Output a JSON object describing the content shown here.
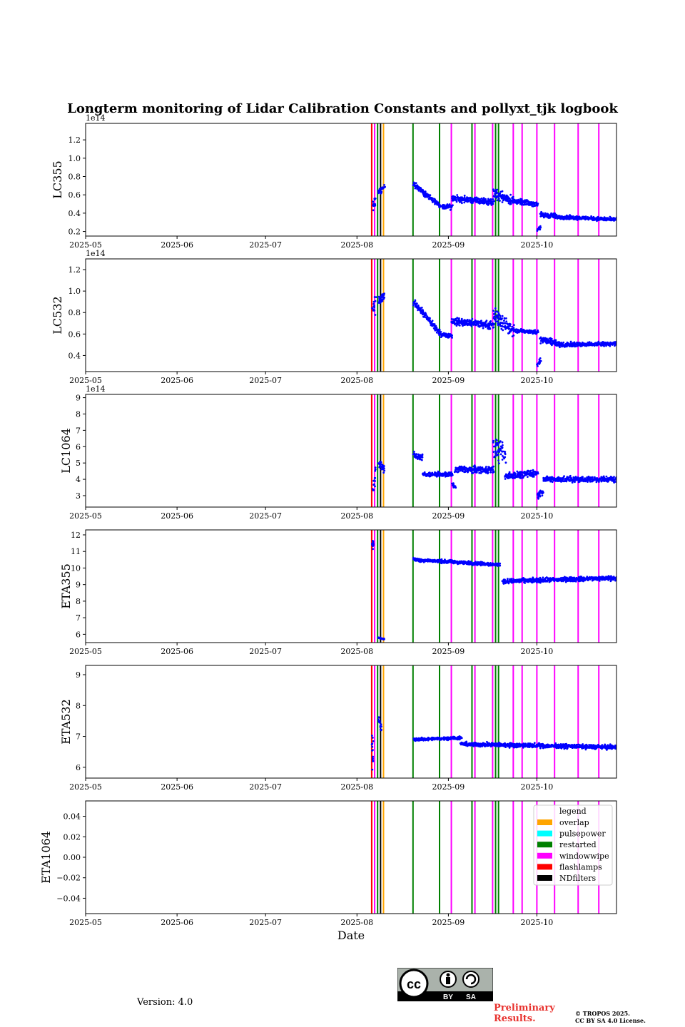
{
  "chart_data": {
    "type": "scatter",
    "title": "Longterm monitoring of Lidar Calibration Constants and pollyxt_tjk logbook",
    "xlabel": "Date",
    "x_range": [
      "2025-05-01",
      "2025-10-28"
    ],
    "x_ticks": [
      "2025-05",
      "2025-06",
      "2025-07",
      "2025-08",
      "2025-09",
      "2025-10"
    ],
    "series_color": "#0000ff",
    "events": [
      {
        "date": "2025-08-06",
        "type": "overlap"
      },
      {
        "date": "2025-08-06",
        "type": "flashlamps"
      },
      {
        "date": "2025-08-07",
        "type": "windowwipe"
      },
      {
        "date": "2025-08-08",
        "type": "restarted"
      },
      {
        "date": "2025-08-09",
        "type": "NDfilters"
      },
      {
        "date": "2025-08-10",
        "type": "overlap"
      },
      {
        "date": "2025-08-20",
        "type": "restarted"
      },
      {
        "date": "2025-08-29",
        "type": "restarted"
      },
      {
        "date": "2025-09-02",
        "type": "windowwipe"
      },
      {
        "date": "2025-09-09",
        "type": "restarted"
      },
      {
        "date": "2025-09-10",
        "type": "windowwipe"
      },
      {
        "date": "2025-09-16",
        "type": "windowwipe"
      },
      {
        "date": "2025-09-17",
        "type": "restarted"
      },
      {
        "date": "2025-09-18",
        "type": "restarted"
      },
      {
        "date": "2025-09-23",
        "type": "windowwipe"
      },
      {
        "date": "2025-09-26",
        "type": "windowwipe"
      },
      {
        "date": "2025-10-01",
        "type": "windowwipe"
      },
      {
        "date": "2025-10-07",
        "type": "windowwipe"
      },
      {
        "date": "2025-10-15",
        "type": "windowwipe"
      },
      {
        "date": "2025-10-22",
        "type": "windowwipe"
      }
    ],
    "event_colors": {
      "overlap": "#ffa500",
      "pulsepower": "#00ffff",
      "restarted": "#008000",
      "windowwipe": "#ff00ff",
      "flashlamps": "#ff0000",
      "NDfilters": "#000000"
    },
    "legend": {
      "title": "legend",
      "position": "top-right",
      "entries": [
        "overlap",
        "pulsepower",
        "restarted",
        "windowwipe",
        "flashlamps",
        "NDfilters"
      ]
    },
    "panels": [
      {
        "ylabel": "LC355",
        "offset_label": "1e14",
        "ylim": [
          0.15,
          1.38
        ],
        "yticks": [
          0.2,
          0.4,
          0.6,
          0.8,
          1.0,
          1.2
        ],
        "ytick_labels": [
          "0.2",
          "0.4",
          "0.6",
          "0.8",
          "1.0",
          "1.2"
        ],
        "segments": [
          {
            "start": "2025-08-06",
            "end": "2025-08-07",
            "from": 0.5,
            "to": 0.52,
            "noise": 0.1
          },
          {
            "start": "2025-08-08",
            "end": "2025-08-10",
            "from": 0.62,
            "to": 0.68,
            "noise": 0.05
          },
          {
            "start": "2025-08-20",
            "end": "2025-08-29",
            "from": 0.72,
            "to": 0.47,
            "noise": 0.04
          },
          {
            "start": "2025-08-29",
            "end": "2025-09-02",
            "from": 0.47,
            "to": 0.47,
            "noise": 0.04
          },
          {
            "start": "2025-09-02",
            "end": "2025-09-16",
            "from": 0.56,
            "to": 0.52,
            "noise": 0.05
          },
          {
            "start": "2025-09-16",
            "end": "2025-09-23",
            "from": 0.62,
            "to": 0.53,
            "noise": 0.08
          },
          {
            "start": "2025-09-23",
            "end": "2025-10-01",
            "from": 0.53,
            "to": 0.5,
            "noise": 0.04
          },
          {
            "start": "2025-10-01",
            "end": "2025-10-02",
            "from": 0.22,
            "to": 0.25,
            "noise": 0.03
          },
          {
            "start": "2025-10-02",
            "end": "2025-10-07",
            "from": 0.38,
            "to": 0.37,
            "noise": 0.04
          },
          {
            "start": "2025-10-07",
            "end": "2025-10-28",
            "from": 0.36,
            "to": 0.33,
            "noise": 0.03
          }
        ]
      },
      {
        "ylabel": "LC532",
        "offset_label": "1e14",
        "ylim": [
          0.25,
          1.3
        ],
        "yticks": [
          0.4,
          0.6,
          0.8,
          1.0,
          1.2
        ],
        "ytick_labels": [
          "0.4",
          "0.6",
          "0.8",
          "1.0",
          "1.2"
        ],
        "segments": [
          {
            "start": "2025-08-06",
            "end": "2025-08-07",
            "from": 0.8,
            "to": 0.9,
            "noise": 0.15
          },
          {
            "start": "2025-08-08",
            "end": "2025-08-10",
            "from": 0.9,
            "to": 0.95,
            "noise": 0.06
          },
          {
            "start": "2025-08-20",
            "end": "2025-08-29",
            "from": 0.9,
            "to": 0.6,
            "noise": 0.04
          },
          {
            "start": "2025-08-29",
            "end": "2025-09-02",
            "from": 0.6,
            "to": 0.58,
            "noise": 0.03
          },
          {
            "start": "2025-09-02",
            "end": "2025-09-16",
            "from": 0.72,
            "to": 0.68,
            "noise": 0.05
          },
          {
            "start": "2025-09-16",
            "end": "2025-09-23",
            "from": 0.78,
            "to": 0.62,
            "noise": 0.1
          },
          {
            "start": "2025-09-23",
            "end": "2025-10-01",
            "from": 0.63,
            "to": 0.62,
            "noise": 0.03
          },
          {
            "start": "2025-10-01",
            "end": "2025-10-02",
            "from": 0.32,
            "to": 0.36,
            "noise": 0.03
          },
          {
            "start": "2025-10-02",
            "end": "2025-10-07",
            "from": 0.55,
            "to": 0.52,
            "noise": 0.04
          },
          {
            "start": "2025-10-07",
            "end": "2025-10-28",
            "from": 0.5,
            "to": 0.51,
            "noise": 0.03
          }
        ]
      },
      {
        "ylabel": "LC1064",
        "offset_label": "1e14",
        "ylim": [
          2.3,
          9.2
        ],
        "yticks": [
          3,
          4,
          5,
          6,
          7,
          8,
          9
        ],
        "ytick_labels": [
          "3",
          "4",
          "5",
          "6",
          "7",
          "8",
          "9"
        ],
        "segments": [
          {
            "start": "2025-08-06",
            "end": "2025-08-07",
            "from": 3.5,
            "to": 4.5,
            "noise": 0.8
          },
          {
            "start": "2025-08-08",
            "end": "2025-08-10",
            "from": 5.0,
            "to": 4.6,
            "noise": 0.3
          },
          {
            "start": "2025-08-20",
            "end": "2025-08-23",
            "from": 5.5,
            "to": 5.3,
            "noise": 0.3
          },
          {
            "start": "2025-08-23",
            "end": "2025-09-02",
            "from": 4.3,
            "to": 4.3,
            "noise": 0.2
          },
          {
            "start": "2025-09-02",
            "end": "2025-09-03",
            "from": 3.7,
            "to": 3.5,
            "noise": 0.2
          },
          {
            "start": "2025-09-03",
            "end": "2025-09-16",
            "from": 4.6,
            "to": 4.6,
            "noise": 0.3
          },
          {
            "start": "2025-09-16",
            "end": "2025-09-20",
            "from": 6.0,
            "to": 5.5,
            "noise": 1.0
          },
          {
            "start": "2025-09-20",
            "end": "2025-10-01",
            "from": 4.2,
            "to": 4.4,
            "noise": 0.3
          },
          {
            "start": "2025-10-01",
            "end": "2025-10-03",
            "from": 3.0,
            "to": 3.3,
            "noise": 0.3
          },
          {
            "start": "2025-10-03",
            "end": "2025-10-28",
            "from": 4.0,
            "to": 4.0,
            "noise": 0.25
          }
        ]
      },
      {
        "ylabel": "ETA355",
        "offset_label": "",
        "ylim": [
          5.5,
          12.3
        ],
        "yticks": [
          6,
          7,
          8,
          9,
          10,
          11,
          12
        ],
        "ytick_labels": [
          "6",
          "7",
          "8",
          "9",
          "10",
          "11",
          "12"
        ],
        "segments": [
          {
            "start": "2025-08-06",
            "end": "2025-08-06",
            "from": 11.5,
            "to": 11.5,
            "noise": 0.4
          },
          {
            "start": "2025-08-08",
            "end": "2025-08-10",
            "from": 5.8,
            "to": 5.7,
            "noise": 0.05
          },
          {
            "start": "2025-08-20",
            "end": "2025-09-18",
            "from": 10.5,
            "to": 10.2,
            "noise": 0.15
          },
          {
            "start": "2025-09-19",
            "end": "2025-10-28",
            "from": 9.2,
            "to": 9.4,
            "noise": 0.2
          }
        ]
      },
      {
        "ylabel": "ETA532",
        "offset_label": "",
        "ylim": [
          5.65,
          9.3
        ],
        "yticks": [
          6,
          7,
          8,
          9
        ],
        "ytick_labels": [
          "6",
          "7",
          "8",
          "9"
        ],
        "segments": [
          {
            "start": "2025-08-06",
            "end": "2025-08-06",
            "from": 6.0,
            "to": 7.0,
            "noise": 0.6
          },
          {
            "start": "2025-08-08",
            "end": "2025-08-09",
            "from": 7.6,
            "to": 7.2,
            "noise": 0.1
          },
          {
            "start": "2025-08-20",
            "end": "2025-09-05",
            "from": 6.9,
            "to": 6.95,
            "noise": 0.07
          },
          {
            "start": "2025-09-05",
            "end": "2025-10-28",
            "from": 6.75,
            "to": 6.65,
            "noise": 0.1
          }
        ]
      },
      {
        "ylabel": "ETA1064",
        "offset_label": "",
        "ylim": [
          -0.055,
          0.055
        ],
        "yticks": [
          -0.04,
          -0.02,
          0.0,
          0.02,
          0.04
        ],
        "ytick_labels": [
          "−0.04",
          "−0.02",
          "0.00",
          "0.02",
          "0.04"
        ],
        "segments": []
      }
    ]
  },
  "footer": {
    "version": "Version: 4.0",
    "preliminary_line1": "Preliminary",
    "preliminary_line2": "Results.",
    "copyright_line1": "© TROPOS 2025.",
    "copyright_line2": "CC BY SA 4.0 License.",
    "license_badge": "CC BY SA"
  }
}
